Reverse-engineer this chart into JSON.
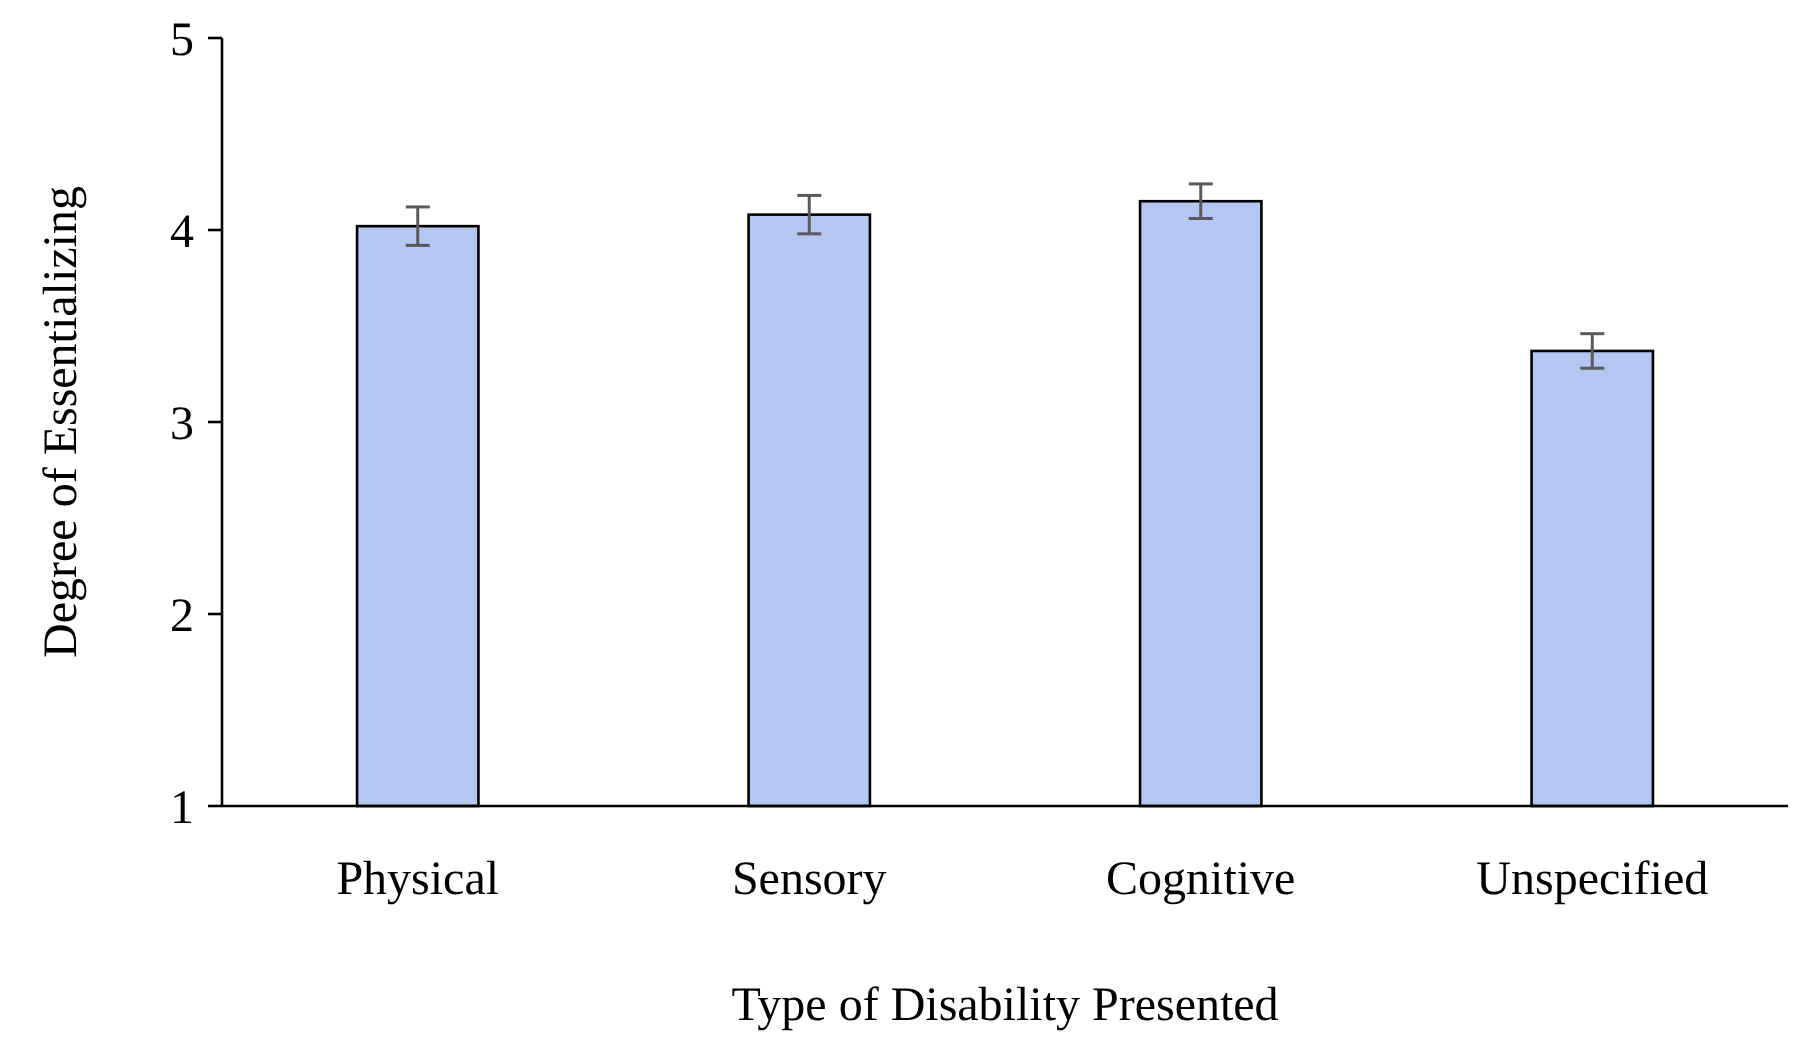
{
  "chart_data": {
    "type": "bar",
    "xlabel": "Type of Disability Presented",
    "ylabel": "Degree of Essentializing",
    "categories": [
      "Physical",
      "Sensory",
      "Cognitive",
      "Unspecified"
    ],
    "values": [
      4.02,
      4.08,
      4.15,
      3.37
    ],
    "errors": [
      0.1,
      0.1,
      0.09,
      0.09
    ],
    "color": "#b4c7f2",
    "ylim": [
      1,
      5
    ],
    "yticks": [
      1,
      2,
      3,
      4,
      5
    ],
    "grid": false
  }
}
